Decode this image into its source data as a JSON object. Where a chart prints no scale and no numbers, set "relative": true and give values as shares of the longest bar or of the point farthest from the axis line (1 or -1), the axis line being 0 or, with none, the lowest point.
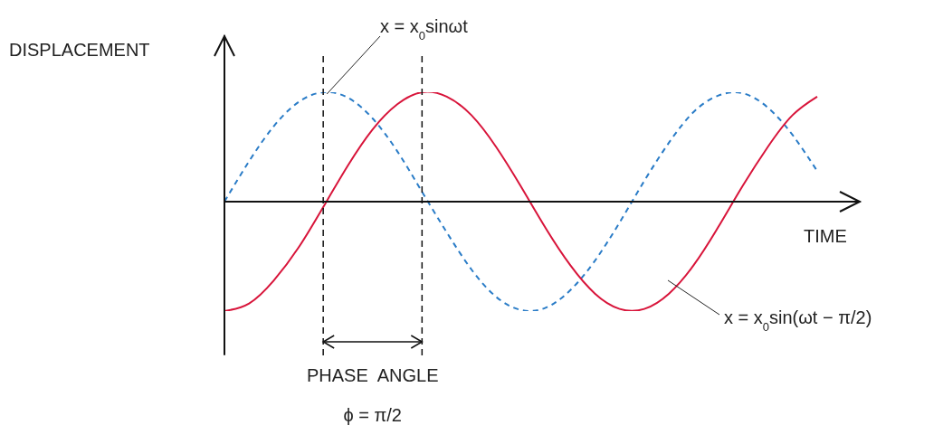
{
  "chart_data": {
    "type": "line",
    "relative": true,
    "xlabel": "TIME",
    "ylabel": "DISPLACEMENT",
    "categories": [
      null,
      null,
      null,
      null,
      null,
      null,
      null,
      null,
      null,
      null,
      null,
      null,
      null,
      null,
      null,
      null,
      null,
      null,
      null,
      null,
      null,
      null,
      null,
      null,
      null
    ],
    "series": [
      {
        "name": "x = x$_{0}$sinωt",
        "color": "#2a7cc7",
        "line_style": "dashed",
        "values": [
          0,
          0.37,
          0.69,
          0.91,
          1,
          0.95,
          0.76,
          0.46,
          0.09,
          -0.28,
          -0.62,
          -0.87,
          -0.99,
          -0.97,
          -0.81,
          -0.54,
          -0.19,
          0.19,
          0.54,
          0.82,
          0.97,
          0.99,
          0.86,
          0.61,
          0.28
        ]
      },
      {
        "name": "x = x$_{0}$sin(ωt − π/2)",
        "color": "#d8143a",
        "line_style": "solid",
        "values": [
          -1,
          -0.93,
          -0.72,
          -0.42,
          -0.05,
          0.33,
          0.66,
          0.89,
          1,
          0.96,
          0.79,
          0.5,
          0.14,
          -0.24,
          -0.58,
          -0.84,
          -0.98,
          -0.98,
          -0.84,
          -0.58,
          -0.23,
          0.15,
          0.5,
          0.79,
          0.96
        ]
      }
    ],
    "annotations": [
      "PHASE  ANGLE",
      "ϕ = π/2"
    ],
    "legend": false,
    "grid": false,
    "marker": "none"
  }
}
